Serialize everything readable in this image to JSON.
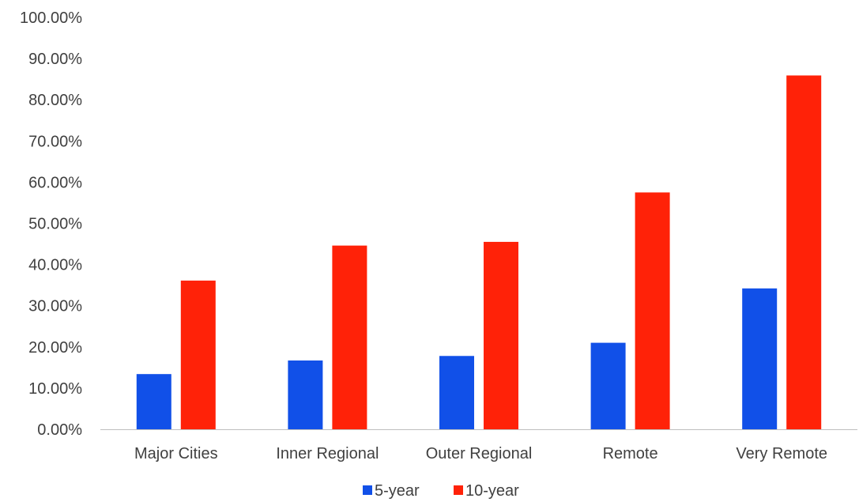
{
  "chart_data": {
    "type": "bar",
    "categories": [
      "Major Cities",
      "Inner Regional",
      "Outer Regional",
      "Remote",
      "Very Remote"
    ],
    "series": [
      {
        "name": "5-year",
        "color": "#1150E8",
        "values": [
          0.134,
          0.167,
          0.178,
          0.21,
          0.342
        ]
      },
      {
        "name": "10-year",
        "color": "#FF2208",
        "values": [
          0.361,
          0.446,
          0.455,
          0.575,
          0.859
        ]
      }
    ],
    "ylim": [
      0,
      1
    ],
    "yticks": [
      0,
      0.1,
      0.2,
      0.3,
      0.4,
      0.5,
      0.6,
      0.7,
      0.8,
      0.9,
      1.0
    ],
    "ytick_labels": [
      "0.00%",
      "10.00%",
      "20.00%",
      "30.00%",
      "40.00%",
      "50.00%",
      "60.00%",
      "70.00%",
      "80.00%",
      "90.00%",
      "100.00%"
    ],
    "title": "",
    "xlabel": "",
    "ylabel": "",
    "grid": false,
    "legend_position": "bottom"
  }
}
